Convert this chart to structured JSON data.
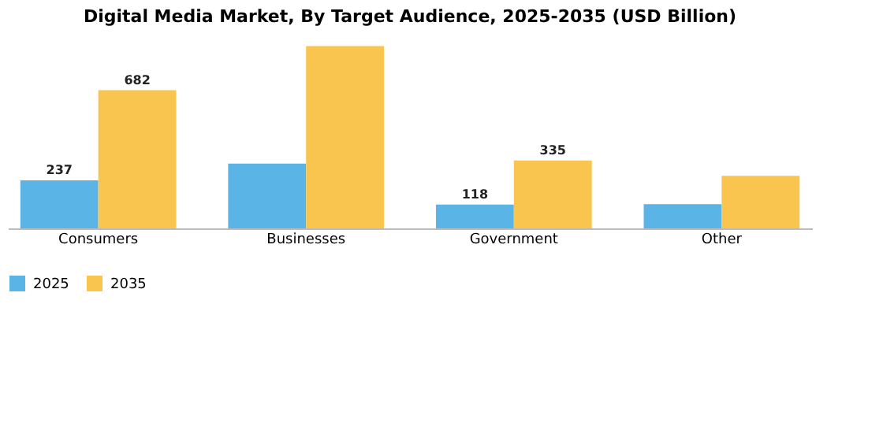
{
  "chart_data": {
    "type": "bar",
    "title": "Digital Media Market, By Target Audience, 2025-2035 (USD Billion)",
    "categories": [
      "Consumers",
      "Businesses",
      "Government",
      "Other"
    ],
    "series": [
      {
        "name": "2025",
        "color": "#5ab4e5",
        "values": [
          237,
          320,
          118,
          120
        ],
        "value_labels": [
          "237",
          null,
          "118",
          null
        ]
      },
      {
        "name": "2035",
        "color": "#fac54e",
        "values": [
          682,
          900,
          335,
          260
        ],
        "value_labels": [
          "682",
          null,
          "335",
          null
        ]
      }
    ],
    "legend": "bottom",
    "grid": false
  }
}
